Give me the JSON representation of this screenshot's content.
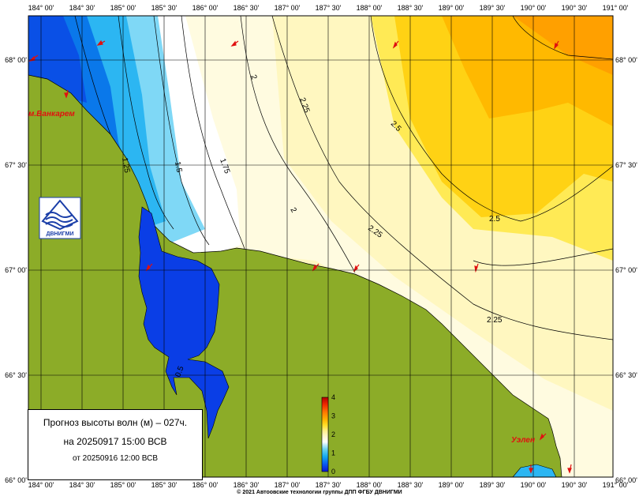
{
  "map": {
    "lon_labels": [
      "184° 00'",
      "184° 30'",
      "185° 00'",
      "185° 30'",
      "186° 00'",
      "186° 30'",
      "187° 00'",
      "187° 30'",
      "188° 00'",
      "188° 30'",
      "189° 00'",
      "189° 30'",
      "190° 00'",
      "190° 30'",
      "191° 00'"
    ],
    "lat_labels": [
      "68° 00'",
      "67° 30'",
      "67° 00'",
      "66° 30'",
      "66° 00'"
    ],
    "contour_labels": [
      "2",
      "2.25",
      "2.5",
      "1.5",
      "1.75",
      "1.25",
      "2",
      "2.25",
      "2.5",
      "2.25",
      "0.5"
    ],
    "places": {
      "vankarem": "м.Ванкарем",
      "uelen": "Уэлен"
    },
    "logo_text": "ДВНИГМИ",
    "colorbar": {
      "ticks": [
        "4",
        "3",
        "2",
        "1",
        "0"
      ],
      "colors": [
        "#0a14d2",
        "#0a5af0",
        "#14aaf0",
        "#6ad2f0",
        "#ffffff",
        "#fff7c8",
        "#fff08a",
        "#ffe02a",
        "#ffb400",
        "#ff7800",
        "#f02a00",
        "#b40000"
      ]
    },
    "colors": {
      "land": "#8cac28",
      "deep_blue": "#0a3ee6"
    }
  },
  "info": {
    "title": "Прогноз высоты волн (м) – 027ч.",
    "valid": "на 20250917 15:00 ВСВ",
    "issued": "от 20250916 12:00 ВСВ"
  },
  "footer": {
    "copyright": "© 2021 Автоовские технологии группы ДПП ФГБУ ДВНИГМИ"
  }
}
